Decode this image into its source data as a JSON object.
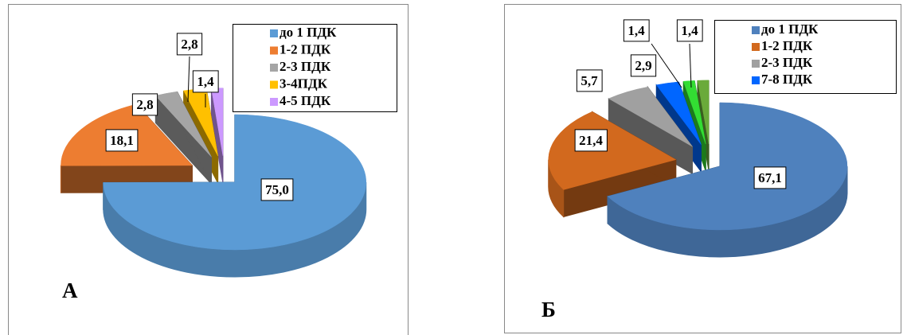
{
  "chart_data": [
    {
      "type": "pie",
      "panel_label": "А",
      "categories": [
        "до 1 ПДК",
        "1-2 ПДК",
        "2-3 ПДК",
        "3-4ПДК",
        "4-5 ПДК"
      ],
      "values": [
        75.0,
        18.1,
        2.8,
        2.8,
        1.4
      ],
      "value_labels": [
        "75,0",
        "18,1",
        "2,8",
        "2,8",
        "1,4"
      ],
      "colors": [
        "#5b9bd5",
        "#ed7d31",
        "#a5a5a5",
        "#ffc000",
        "#cc99ff"
      ]
    },
    {
      "type": "pie",
      "panel_label": "Б",
      "categories": [
        "до 1 ПДК",
        "1-2 ПДК",
        "2-3 ПДК",
        "7-8 ПДК",
        null,
        null
      ],
      "values": [
        67.1,
        21.4,
        5.7,
        2.9,
        1.4,
        1.4
      ],
      "value_labels": [
        "67,1",
        "21,4",
        "5,7",
        "2,9",
        "1,4",
        "1,4"
      ],
      "colors": [
        "#4f81bd",
        "#d2691e",
        "#a0a0a0",
        "#0066ff",
        "#33dd33",
        "#6aaa3a"
      ]
    }
  ]
}
